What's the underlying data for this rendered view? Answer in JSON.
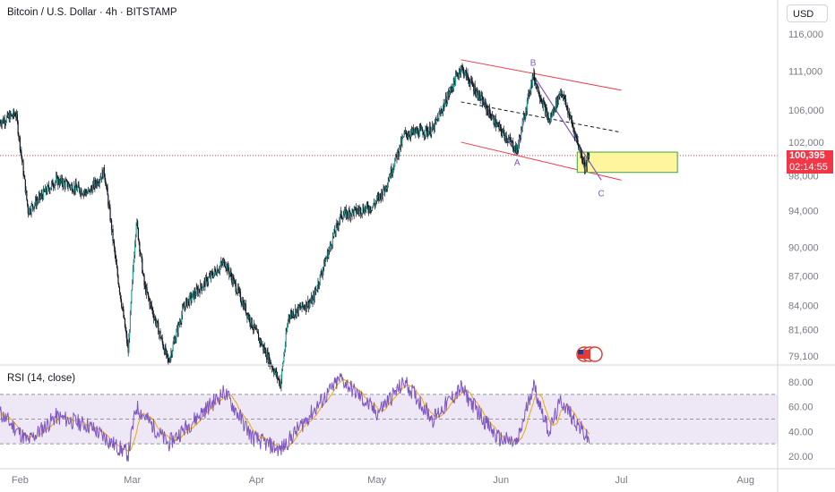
{
  "header": {
    "title": "Bitcoin / U.S. Dollar · 4h · BITSTAMP",
    "currency": "USD"
  },
  "price_badge": {
    "price": "100,395",
    "countdown": "02:14:55"
  },
  "rsi_panel": {
    "title": "RSI (14, close)"
  },
  "colors": {
    "up": "#26a69a",
    "down": "#ef5350",
    "candle_body": "#131722",
    "channel": "#f23645",
    "wave": "#7e57c2",
    "rsi_line": "#7e57c2",
    "rsi_ma": "#f7a600",
    "rsi_band": "#ede7f6",
    "target_box": "#fff59d",
    "target_border": "#43a047"
  },
  "chart_data": [
    {
      "type": "candlestick",
      "title": "Bitcoin / U.S. Dollar · 4h · BITSTAMP",
      "x_ticks": [
        "Feb",
        "Mar",
        "Apr",
        "May",
        "Jun",
        "Jul",
        "Aug"
      ],
      "y_ticks": [
        79100,
        81600,
        84000,
        87000,
        90000,
        94000,
        98000,
        102000,
        106000,
        111000,
        116000
      ],
      "y_tick_labels": [
        "79,100",
        "81,600",
        "84,000",
        "87,000",
        "90,000",
        "94,000",
        "98,000",
        "102,000",
        "106,000",
        "111,000",
        "116,000"
      ],
      "scale": "log",
      "last_price": 100395,
      "path_points": [
        {
          "date": "2025-01-27",
          "price": 104500
        },
        {
          "date": "2025-01-31",
          "price": 105500
        },
        {
          "date": "2025-02-03",
          "price": 94000
        },
        {
          "date": "2025-02-10",
          "price": 97500
        },
        {
          "date": "2025-02-18",
          "price": 96000
        },
        {
          "date": "2025-02-22",
          "price": 98500
        },
        {
          "date": "2025-02-25",
          "price": 88000
        },
        {
          "date": "2025-02-28",
          "price": 79500
        },
        {
          "date": "2025-03-02",
          "price": 93000
        },
        {
          "date": "2025-03-04",
          "price": 86000
        },
        {
          "date": "2025-03-10",
          "price": 78500
        },
        {
          "date": "2025-03-14",
          "price": 84000
        },
        {
          "date": "2025-03-24",
          "price": 88500
        },
        {
          "date": "2025-03-31",
          "price": 82000
        },
        {
          "date": "2025-04-07",
          "price": 76500
        },
        {
          "date": "2025-04-09",
          "price": 83000
        },
        {
          "date": "2025-04-15",
          "price": 84500
        },
        {
          "date": "2025-04-22",
          "price": 93500
        },
        {
          "date": "2025-04-30",
          "price": 94500
        },
        {
          "date": "2025-05-03",
          "price": 96500
        },
        {
          "date": "2025-05-08",
          "price": 103000
        },
        {
          "date": "2025-05-15",
          "price": 103500
        },
        {
          "date": "2025-05-22",
          "price": 111500
        },
        {
          "date": "2025-05-31",
          "price": 104000
        },
        {
          "date": "2025-06-05",
          "price": 101000
        },
        {
          "date": "2025-06-09",
          "price": 110500
        },
        {
          "date": "2025-06-13",
          "price": 104500
        },
        {
          "date": "2025-06-16",
          "price": 108500
        },
        {
          "date": "2025-06-22",
          "price": 99000
        },
        {
          "date": "2025-06-23",
          "price": 100395
        }
      ],
      "annotations": {
        "wave_labels": [
          "A",
          "B",
          "C"
        ],
        "projection_points": [
          {
            "label": "A",
            "date": "2025-06-05",
            "price": 100500
          },
          {
            "label": "B",
            "date": "2025-06-09",
            "price": 110500
          },
          {
            "label": "C",
            "date": "2025-06-26",
            "price": 97500
          }
        ],
        "target_zone": {
          "date_from": "2025-06-20",
          "date_to": "2025-07-15",
          "price_from": 98400,
          "price_to": 100800
        },
        "channel_upper": [
          {
            "date": "2025-05-22",
            "price": 112500
          },
          {
            "date": "2025-07-01",
            "price": 108500
          }
        ],
        "channel_lower": [
          {
            "date": "2025-05-22",
            "price": 102000
          },
          {
            "date": "2025-07-01",
            "price": 97500
          }
        ],
        "channel_mid": [
          {
            "date": "2025-05-22",
            "price": 107000
          },
          {
            "date": "2025-07-01",
            "price": 103200
          }
        ]
      }
    },
    {
      "type": "line",
      "title": "RSI (14, close)",
      "y_ticks": [
        20,
        40,
        60,
        80
      ],
      "y_tick_labels": [
        "20.00",
        "40.00",
        "60.00",
        "80.00"
      ],
      "bands": {
        "upper": 70,
        "lower": 30
      },
      "path_points": [
        {
          "date": "2025-01-27",
          "rsi": 55
        },
        {
          "date": "2025-02-03",
          "rsi": 32
        },
        {
          "date": "2025-02-10",
          "rsi": 52
        },
        {
          "date": "2025-02-18",
          "rsi": 45
        },
        {
          "date": "2025-02-25",
          "rsi": 28
        },
        {
          "date": "2025-02-28",
          "rsi": 22
        },
        {
          "date": "2025-03-02",
          "rsi": 60
        },
        {
          "date": "2025-03-10",
          "rsi": 30
        },
        {
          "date": "2025-03-24",
          "rsi": 72
        },
        {
          "date": "2025-03-31",
          "rsi": 35
        },
        {
          "date": "2025-04-07",
          "rsi": 25
        },
        {
          "date": "2025-04-22",
          "rsi": 83
        },
        {
          "date": "2025-05-01",
          "rsi": 55
        },
        {
          "date": "2025-05-08",
          "rsi": 80
        },
        {
          "date": "2025-05-15",
          "rsi": 50
        },
        {
          "date": "2025-05-22",
          "rsi": 75
        },
        {
          "date": "2025-05-31",
          "rsi": 35
        },
        {
          "date": "2025-06-05",
          "rsi": 30
        },
        {
          "date": "2025-06-09",
          "rsi": 78
        },
        {
          "date": "2025-06-13",
          "rsi": 40
        },
        {
          "date": "2025-06-16",
          "rsi": 65
        },
        {
          "date": "2025-06-23",
          "rsi": 32
        }
      ]
    }
  ]
}
